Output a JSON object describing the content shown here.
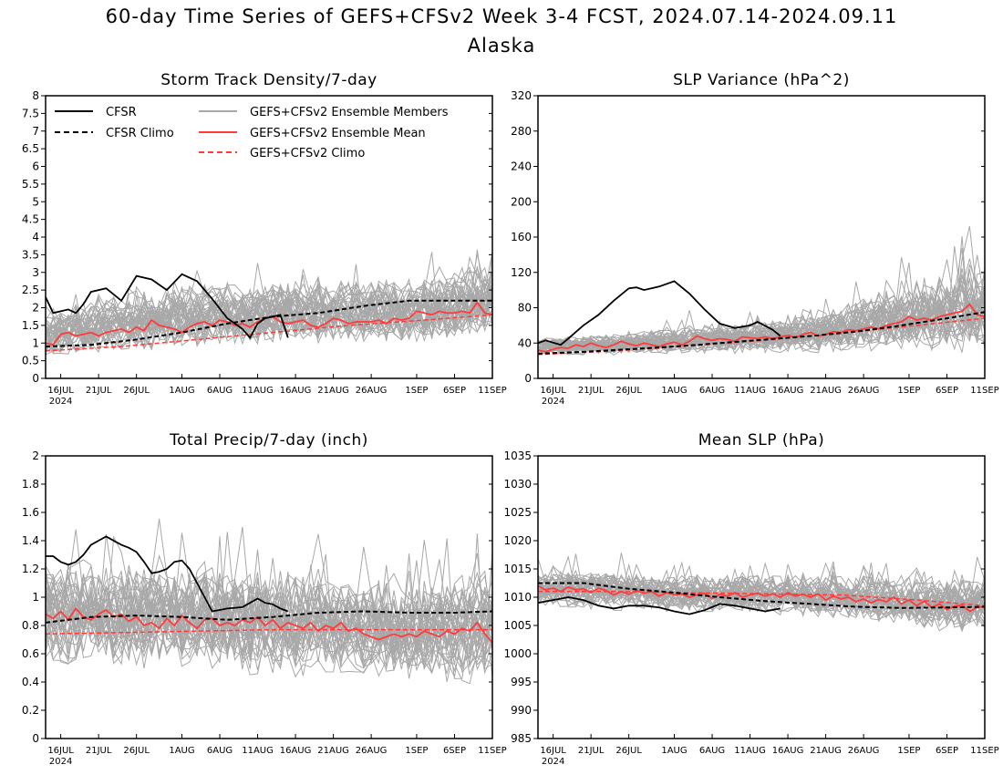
{
  "header": {
    "title": "60-day Time Series of GEFS+CFSv2 Week 3-4 FCST, 2024.07.14-2024.09.11",
    "region": "Alaska"
  },
  "legend": {
    "cfsr": "CFSR",
    "cfsr_climo": "CFSR Climo",
    "members": "GEFS+CFSv2 Ensemble Members",
    "mean": "GEFS+CFSv2 Ensemble Mean",
    "climo": "GEFS+CFSv2 Climo"
  },
  "colors": {
    "cfsr": "#000000",
    "members": "#a8a8a8",
    "mean": "#ff3b3b",
    "climo": "#ff3b3b"
  },
  "x_ticks": [
    "16JUL",
    "21JUL",
    "26JUL",
    "1AUG",
    "6AUG",
    "11AUG",
    "16AUG",
    "21AUG",
    "26AUG",
    "1SEP",
    "6SEP",
    "11SEP"
  ],
  "x_tick_days": [
    2,
    7,
    12,
    18,
    23,
    28,
    33,
    38,
    43,
    49,
    54,
    59
  ],
  "x_year": "2024",
  "chart_data": [
    {
      "type": "line",
      "title": "Storm Track Density/7-day",
      "ylim": [
        0,
        8
      ],
      "yticks": [
        0,
        0.5,
        1,
        1.5,
        2,
        2.5,
        3,
        3.5,
        4,
        4.5,
        5,
        5.5,
        6,
        6.5,
        7,
        7.5,
        8
      ],
      "ytick_labels": [
        "0",
        "0.5",
        "1",
        "1.5",
        "2",
        "2.5",
        "3",
        "3.5",
        "4",
        "4.5",
        "5",
        "5.5",
        "6",
        "6.5",
        "7",
        "7.5",
        "8"
      ],
      "legend": true,
      "series": [
        {
          "name": "CFSR",
          "x": [
            0,
            1,
            3,
            4,
            5,
            6,
            8,
            10,
            12,
            14,
            16,
            18,
            20,
            22,
            24,
            26,
            27,
            28,
            29,
            30,
            31,
            32
          ],
          "y": [
            2.3,
            1.85,
            1.95,
            1.85,
            2.1,
            2.45,
            2.55,
            2.2,
            2.9,
            2.8,
            2.5,
            2.95,
            2.75,
            2.25,
            1.7,
            1.4,
            1.15,
            1.55,
            1.7,
            1.75,
            1.8,
            1.15
          ]
        },
        {
          "name": "CFSR Climo",
          "x": [
            0,
            6,
            12,
            18,
            24,
            30,
            36,
            42,
            48,
            54,
            59
          ],
          "y": [
            0.9,
            0.95,
            1.1,
            1.3,
            1.55,
            1.75,
            1.85,
            2.05,
            2.2,
            2.2,
            2.2
          ]
        },
        {
          "name": "GEFS+CFSv2 Ensemble Mean",
          "x": [
            0,
            1,
            2,
            3,
            4,
            5,
            6,
            7,
            8,
            9,
            10,
            11,
            12,
            13,
            14,
            15,
            16,
            17,
            18,
            19,
            20,
            21,
            22,
            23,
            24,
            25,
            26,
            27,
            28,
            29,
            30,
            31,
            32,
            33,
            34,
            35,
            36,
            37,
            38,
            39,
            40,
            41,
            42,
            43,
            44,
            45,
            46,
            47,
            48,
            49,
            50,
            51,
            52,
            53,
            54,
            55,
            56,
            57,
            58,
            59
          ],
          "y": [
            1.0,
            0.95,
            1.25,
            1.3,
            1.2,
            1.25,
            1.3,
            1.2,
            1.3,
            1.35,
            1.4,
            1.3,
            1.45,
            1.35,
            1.65,
            1.5,
            1.45,
            1.4,
            1.3,
            1.45,
            1.55,
            1.6,
            1.5,
            1.65,
            1.6,
            1.5,
            1.55,
            1.45,
            1.6,
            1.7,
            1.75,
            1.6,
            1.55,
            1.6,
            1.65,
            1.5,
            1.45,
            1.55,
            1.7,
            1.65,
            1.55,
            1.6,
            1.6,
            1.6,
            1.65,
            1.55,
            1.7,
            1.65,
            1.7,
            1.9,
            1.85,
            1.8,
            1.9,
            1.85,
            1.85,
            1.9,
            1.85,
            2.15,
            1.85,
            1.8
          ]
        },
        {
          "name": "GEFS+CFSv2 Climo",
          "x": [
            0,
            10,
            20,
            30,
            40,
            50,
            59
          ],
          "y": [
            0.78,
            0.9,
            1.1,
            1.3,
            1.5,
            1.65,
            1.8
          ]
        }
      ],
      "members": {
        "count": 40,
        "center": [
          1.2,
          1.6,
          1.75,
          1.85,
          1.9,
          1.9,
          2.25
        ],
        "spread": [
          0.9,
          1.2,
          1.3,
          1.3,
          1.3,
          1.35,
          1.4
        ]
      }
    },
    {
      "type": "line",
      "title": "SLP Variance (hPa^2)",
      "ylim": [
        0,
        320
      ],
      "yticks": [
        0,
        40,
        80,
        120,
        160,
        200,
        240,
        280,
        320
      ],
      "ytick_labels": [
        "0",
        "40",
        "80",
        "120",
        "160",
        "200",
        "240",
        "280",
        "320"
      ],
      "legend": false,
      "series": [
        {
          "name": "CFSR",
          "x": [
            0,
            1,
            3,
            4,
            6,
            8,
            10,
            12,
            13,
            14,
            16,
            18,
            20,
            22,
            24,
            26,
            28,
            29,
            31,
            32
          ],
          "y": [
            40,
            43,
            38,
            45,
            60,
            72,
            88,
            102,
            103,
            100,
            104,
            110,
            96,
            78,
            62,
            57,
            60,
            64,
            55,
            48
          ]
        },
        {
          "name": "CFSR Climo",
          "x": [
            0,
            6,
            12,
            18,
            24,
            30,
            36,
            42,
            48,
            54,
            59
          ],
          "y": [
            28,
            30,
            33,
            36,
            40,
            44,
            48,
            53,
            60,
            68,
            75
          ]
        },
        {
          "name": "GEFS+CFSv2 Ensemble Mean",
          "x": [
            0,
            1,
            2,
            3,
            4,
            5,
            6,
            7,
            8,
            9,
            10,
            11,
            12,
            13,
            14,
            15,
            16,
            17,
            18,
            19,
            20,
            21,
            22,
            23,
            24,
            25,
            26,
            27,
            28,
            29,
            30,
            31,
            32,
            33,
            34,
            35,
            36,
            37,
            38,
            39,
            40,
            41,
            42,
            43,
            44,
            45,
            46,
            47,
            48,
            49,
            50,
            51,
            52,
            53,
            54,
            55,
            56,
            57,
            58,
            59
          ],
          "y": [
            32,
            30,
            33,
            35,
            34,
            38,
            36,
            40,
            37,
            35,
            38,
            42,
            39,
            37,
            40,
            38,
            36,
            39,
            41,
            38,
            42,
            48,
            45,
            43,
            45,
            44,
            42,
            47,
            46,
            45,
            47,
            45,
            47,
            49,
            46,
            50,
            52,
            48,
            50,
            53,
            52,
            55,
            54,
            56,
            58,
            56,
            60,
            62,
            64,
            70,
            66,
            68,
            66,
            70,
            72,
            74,
            76,
            84,
            72,
            70
          ]
        },
        {
          "name": "GEFS+CFSv2 Climo",
          "x": [
            0,
            10,
            20,
            30,
            40,
            50,
            59
          ],
          "y": [
            27,
            31,
            37,
            43,
            51,
            60,
            68
          ]
        }
      ],
      "members": {
        "count": 40,
        "center": [
          36,
          38,
          43,
          47,
          55,
          70,
          80
        ],
        "spread": [
          14,
          18,
          22,
          28,
          38,
          55,
          75
        ]
      }
    },
    {
      "type": "line",
      "title": "Total Precip/7-day (inch)",
      "ylim": [
        0,
        2
      ],
      "yticks": [
        0,
        0.2,
        0.4,
        0.6,
        0.8,
        1,
        1.2,
        1.4,
        1.6,
        1.8,
        2
      ],
      "ytick_labels": [
        "0",
        "0.2",
        "0.4",
        "0.6",
        "0.8",
        "1",
        "1.2",
        "1.4",
        "1.6",
        "1.8",
        "2"
      ],
      "legend": false,
      "series": [
        {
          "name": "CFSR",
          "x": [
            0,
            1,
            2,
            3,
            4,
            5,
            6,
            7,
            8,
            10,
            11,
            12,
            13,
            14,
            15,
            16,
            17,
            18,
            19,
            20,
            21,
            22,
            23,
            24,
            26,
            27,
            28,
            29,
            30,
            31,
            32
          ],
          "y": [
            1.29,
            1.29,
            1.25,
            1.23,
            1.25,
            1.3,
            1.37,
            1.4,
            1.43,
            1.37,
            1.35,
            1.32,
            1.25,
            1.17,
            1.18,
            1.2,
            1.25,
            1.26,
            1.2,
            1.1,
            1.0,
            0.9,
            0.91,
            0.92,
            0.93,
            0.96,
            0.99,
            0.96,
            0.95,
            0.92,
            0.9
          ]
        },
        {
          "name": "CFSR Climo",
          "x": [
            0,
            6,
            12,
            18,
            24,
            30,
            36,
            42,
            48,
            54,
            59
          ],
          "y": [
            0.82,
            0.86,
            0.87,
            0.86,
            0.84,
            0.86,
            0.89,
            0.9,
            0.89,
            0.89,
            0.9
          ]
        },
        {
          "name": "GEFS+CFSv2 Ensemble Mean",
          "x": [
            0,
            1,
            2,
            3,
            4,
            5,
            6,
            7,
            8,
            9,
            10,
            11,
            12,
            13,
            14,
            15,
            16,
            17,
            18,
            19,
            20,
            21,
            22,
            23,
            24,
            25,
            26,
            27,
            28,
            29,
            30,
            31,
            32,
            33,
            34,
            35,
            36,
            37,
            38,
            39,
            40,
            41,
            42,
            43,
            44,
            45,
            46,
            47,
            48,
            49,
            50,
            51,
            52,
            53,
            54,
            55,
            56,
            57,
            58,
            59
          ],
          "y": [
            0.88,
            0.85,
            0.9,
            0.84,
            0.92,
            0.86,
            0.84,
            0.88,
            0.91,
            0.86,
            0.88,
            0.83,
            0.86,
            0.8,
            0.82,
            0.78,
            0.85,
            0.8,
            0.87,
            0.82,
            0.78,
            0.84,
            0.85,
            0.8,
            0.82,
            0.8,
            0.84,
            0.82,
            0.86,
            0.8,
            0.84,
            0.78,
            0.82,
            0.8,
            0.78,
            0.82,
            0.76,
            0.8,
            0.78,
            0.82,
            0.76,
            0.78,
            0.74,
            0.72,
            0.7,
            0.72,
            0.74,
            0.72,
            0.74,
            0.72,
            0.76,
            0.74,
            0.72,
            0.76,
            0.74,
            0.78,
            0.76,
            0.82,
            0.74,
            0.68
          ]
        },
        {
          "name": "GEFS+CFSv2 Climo",
          "x": [
            0,
            10,
            20,
            30,
            40,
            50,
            59
          ],
          "y": [
            0.74,
            0.75,
            0.76,
            0.77,
            0.77,
            0.77,
            0.77
          ]
        }
      ],
      "members": {
        "count": 40,
        "center": [
          0.88,
          0.86,
          0.84,
          0.82,
          0.78,
          0.75,
          0.78
        ],
        "spread": [
          0.55,
          0.55,
          0.55,
          0.55,
          0.5,
          0.5,
          0.6
        ]
      }
    },
    {
      "type": "line",
      "title": "Mean SLP (hPa)",
      "ylim": [
        985,
        1035
      ],
      "yticks": [
        985,
        990,
        995,
        1000,
        1005,
        1010,
        1015,
        1020,
        1025,
        1030,
        1035
      ],
      "ytick_labels": [
        "985",
        "990",
        "995",
        "1000",
        "1005",
        "1010",
        "1015",
        "1020",
        "1025",
        "1030",
        "1035"
      ],
      "legend": false,
      "series": [
        {
          "name": "CFSR",
          "x": [
            0,
            2,
            4,
            6,
            8,
            10,
            12,
            14,
            16,
            18,
            20,
            22,
            24,
            26,
            28,
            30,
            32
          ],
          "y": [
            1009,
            1009.5,
            1010,
            1009.5,
            1008.5,
            1008,
            1008.5,
            1008.5,
            1008.2,
            1007.5,
            1007,
            1007.7,
            1008.8,
            1008.5,
            1008,
            1007.5,
            1008
          ]
        },
        {
          "name": "CFSR Climo",
          "x": [
            0,
            6,
            12,
            18,
            24,
            30,
            36,
            42,
            48,
            54,
            59
          ],
          "y": [
            1012.5,
            1012.5,
            1011.5,
            1010.8,
            1010,
            1009.3,
            1008.8,
            1008.3,
            1008.1,
            1008.2,
            1008.3
          ]
        },
        {
          "name": "GEFS+CFSv2 Ensemble Mean",
          "x": [
            0,
            1,
            2,
            3,
            4,
            5,
            6,
            7,
            8,
            9,
            10,
            11,
            12,
            13,
            14,
            15,
            16,
            17,
            18,
            19,
            20,
            21,
            22,
            23,
            24,
            25,
            26,
            27,
            28,
            29,
            30,
            31,
            32,
            33,
            34,
            35,
            36,
            37,
            38,
            39,
            40,
            41,
            42,
            43,
            44,
            45,
            46,
            47,
            48,
            49,
            50,
            51,
            52,
            53,
            54,
            55,
            56,
            57,
            58,
            59
          ],
          "y": [
            1012,
            1011.3,
            1011.6,
            1011,
            1011.8,
            1011.3,
            1011.5,
            1010.8,
            1011.6,
            1011.2,
            1010.4,
            1011,
            1010.5,
            1011.2,
            1010.7,
            1011,
            1010.2,
            1010.8,
            1010.4,
            1010.6,
            1010,
            1010.4,
            1010.7,
            1009.8,
            1010.5,
            1010.2,
            1010.8,
            1010,
            1010.4,
            1010.7,
            1010.2,
            1010.6,
            1010,
            1010.8,
            1010.2,
            1010.5,
            1010,
            1010.6,
            1009.5,
            1010.2,
            1009.7,
            1010,
            1009.2,
            1009.7,
            1009,
            1009.6,
            1009.2,
            1010,
            1008.8,
            1009.5,
            1008.5,
            1009.3,
            1008.2,
            1008.8,
            1007.8,
            1008.4,
            1008.6,
            1007.5,
            1008.2,
            1008.4
          ]
        },
        {
          "name": "GEFS+CFSv2 Climo",
          "x": [
            0,
            10,
            20,
            30,
            40,
            50,
            59
          ],
          "y": [
            1011,
            1011,
            1010.8,
            1010.6,
            1010.4,
            1009.5,
            1008.5
          ]
        }
      ],
      "members": {
        "count": 40,
        "center": [
          1011.5,
          1011,
          1010.5,
          1010.5,
          1010,
          1009,
          1008.5
        ],
        "spread": [
          4.5,
          5,
          5,
          5,
          5.5,
          6.5,
          7.5
        ]
      }
    }
  ]
}
